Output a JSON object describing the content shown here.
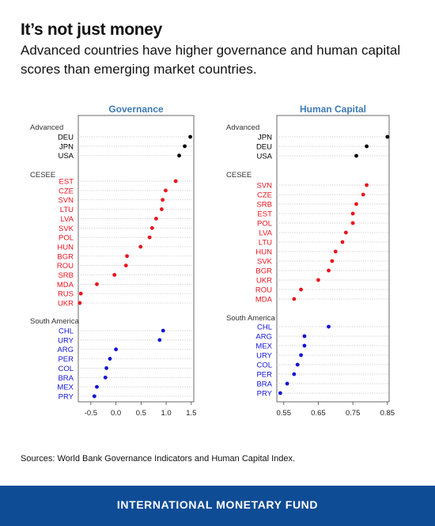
{
  "header": {
    "title": "It’s not just money",
    "subtitle": "Advanced countries have higher governance and human capital scores than emerging market countries."
  },
  "source": "Sources: World Bank Governance Indicators and Human Capital Index.",
  "footer": {
    "label": "INTERNATIONAL MONETARY FUND"
  },
  "colors": {
    "advanced": "#000000",
    "cesee": "#e8141e",
    "south_america": "#1414d4",
    "panel_title": "#3d7ab5",
    "footer_bg": "#0f4c96"
  },
  "chart_data": [
    {
      "type": "scatter",
      "title": "Governance",
      "xlim": [
        -0.75,
        1.55
      ],
      "xticks": [
        "-0.5",
        "0.0",
        "0.5",
        "1.0",
        "1.5"
      ],
      "grid": true,
      "groups": [
        {
          "name": "Advanced",
          "color": "#000000",
          "points": [
            {
              "label": "DEU",
              "value": 1.48
            },
            {
              "label": "JPN",
              "value": 1.37
            },
            {
              "label": "USA",
              "value": 1.26
            }
          ]
        },
        {
          "name": "CESEE",
          "color": "#e8141e",
          "points": [
            {
              "label": "EST",
              "value": 1.19
            },
            {
              "label": "CZE",
              "value": 0.99
            },
            {
              "label": "SVN",
              "value": 0.93
            },
            {
              "label": "LTU",
              "value": 0.91
            },
            {
              "label": "LVA",
              "value": 0.8
            },
            {
              "label": "SVK",
              "value": 0.72
            },
            {
              "label": "POL",
              "value": 0.67
            },
            {
              "label": "HUN",
              "value": 0.49
            },
            {
              "label": "BGR",
              "value": 0.22
            },
            {
              "label": "ROU",
              "value": 0.2
            },
            {
              "label": "SRB",
              "value": -0.03
            },
            {
              "label": "MDA",
              "value": -0.38
            },
            {
              "label": "RUS",
              "value": -0.7
            },
            {
              "label": "UKR",
              "value": -0.72
            }
          ]
        },
        {
          "name": "South America",
          "color": "#1414d4",
          "points": [
            {
              "label": "CHL",
              "value": 0.94
            },
            {
              "label": "URY",
              "value": 0.87
            },
            {
              "label": "ARG",
              "value": 0.0
            },
            {
              "label": "PER",
              "value": -0.12
            },
            {
              "label": "COL",
              "value": -0.19
            },
            {
              "label": "BRA",
              "value": -0.21
            },
            {
              "label": "MEX",
              "value": -0.38
            },
            {
              "label": "PRY",
              "value": -0.43
            }
          ]
        }
      ]
    },
    {
      "type": "scatter",
      "title": "Human Capital",
      "xlim": [
        0.53,
        0.855
      ],
      "xticks": [
        "0.55",
        "0.65",
        "0.75",
        "0.85"
      ],
      "grid": true,
      "groups": [
        {
          "name": "Advanced",
          "color": "#000000",
          "points": [
            {
              "label": "JPN",
              "value": 0.85
            },
            {
              "label": "DEU",
              "value": 0.79
            },
            {
              "label": "USA",
              "value": 0.76
            }
          ]
        },
        {
          "name": "CESEE",
          "color": "#e8141e",
          "points": [
            {
              "label": "SVN",
              "value": 0.79
            },
            {
              "label": "CZE",
              "value": 0.78
            },
            {
              "label": "SRB",
              "value": 0.76
            },
            {
              "label": "EST",
              "value": 0.75
            },
            {
              "label": "POL",
              "value": 0.75
            },
            {
              "label": "LVA",
              "value": 0.73
            },
            {
              "label": "LTU",
              "value": 0.72
            },
            {
              "label": "HUN",
              "value": 0.7
            },
            {
              "label": "SVK",
              "value": 0.69
            },
            {
              "label": "BGR",
              "value": 0.68
            },
            {
              "label": "UKR",
              "value": 0.65
            },
            {
              "label": "ROU",
              "value": 0.6
            },
            {
              "label": "MDA",
              "value": 0.58
            }
          ]
        },
        {
          "name": "South America",
          "color": "#1414d4",
          "points": [
            {
              "label": "CHL",
              "value": 0.68
            },
            {
              "label": "ARG",
              "value": 0.61
            },
            {
              "label": "MEX",
              "value": 0.61
            },
            {
              "label": "URY",
              "value": 0.6
            },
            {
              "label": "COL",
              "value": 0.59
            },
            {
              "label": "PER",
              "value": 0.58
            },
            {
              "label": "BRA",
              "value": 0.56
            },
            {
              "label": "PRY",
              "value": 0.54
            }
          ]
        }
      ]
    }
  ]
}
